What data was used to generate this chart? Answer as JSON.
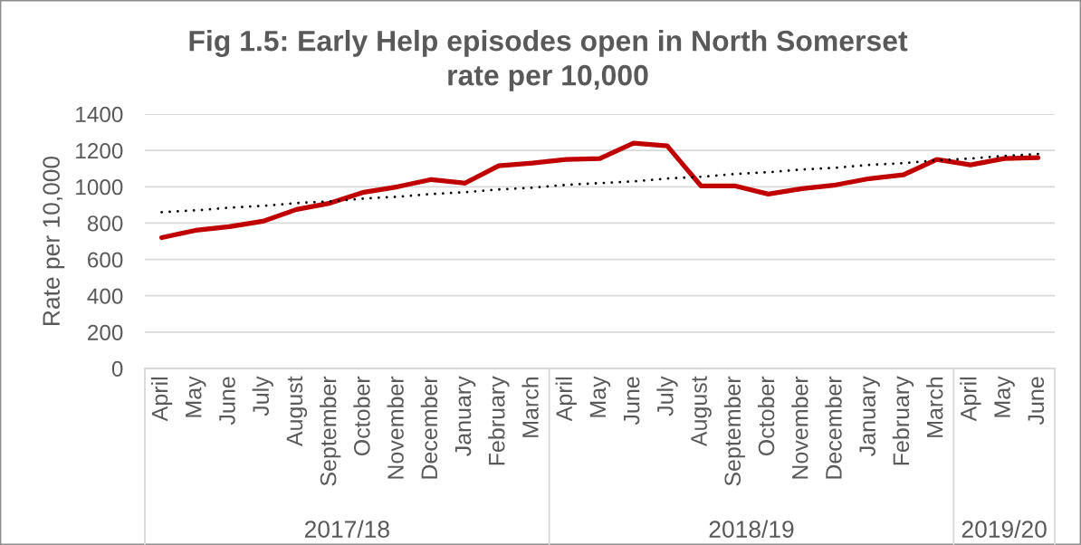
{
  "chart_data": {
    "type": "line",
    "title": "Fig 1.5: Early Help episodes open in North Somerset\nrate per 10,000",
    "ylabel": "Rate per 10,000",
    "categories": [
      "April",
      "May",
      "June",
      "July",
      "August",
      "September",
      "October",
      "November",
      "December",
      "January",
      "February",
      "March",
      "April",
      "May",
      "June",
      "July",
      "August",
      "September",
      "October",
      "November",
      "December",
      "January",
      "February",
      "March",
      "April",
      "May",
      "June"
    ],
    "annotations": [
      "2017/18",
      "2018/19",
      "2019/20"
    ],
    "ylim": [
      0,
      1400
    ],
    "yticks": [
      0,
      200,
      400,
      600,
      800,
      1000,
      1200,
      1400
    ],
    "grid": "y",
    "series": [
      {
        "color": "#c00000",
        "line_style": "solid",
        "values": [
          720,
          760,
          780,
          810,
          875,
          910,
          970,
          1000,
          1040,
          1020,
          1115,
          1130,
          1150,
          1155,
          1240,
          1225,
          1005,
          1005,
          960,
          990,
          1010,
          1045,
          1065,
          1150,
          1120,
          1155,
          1160
        ]
      },
      {
        "type": "line",
        "color": "#000000",
        "line_style": "dotted",
        "values": [
          860,
          870,
          885,
          895,
          910,
          920,
          935,
          945,
          960,
          970,
          985,
          995,
          1010,
          1020,
          1030,
          1045,
          1055,
          1070,
          1080,
          1095,
          1105,
          1120,
          1130,
          1145,
          1155,
          1170,
          1180
        ]
      }
    ]
  }
}
